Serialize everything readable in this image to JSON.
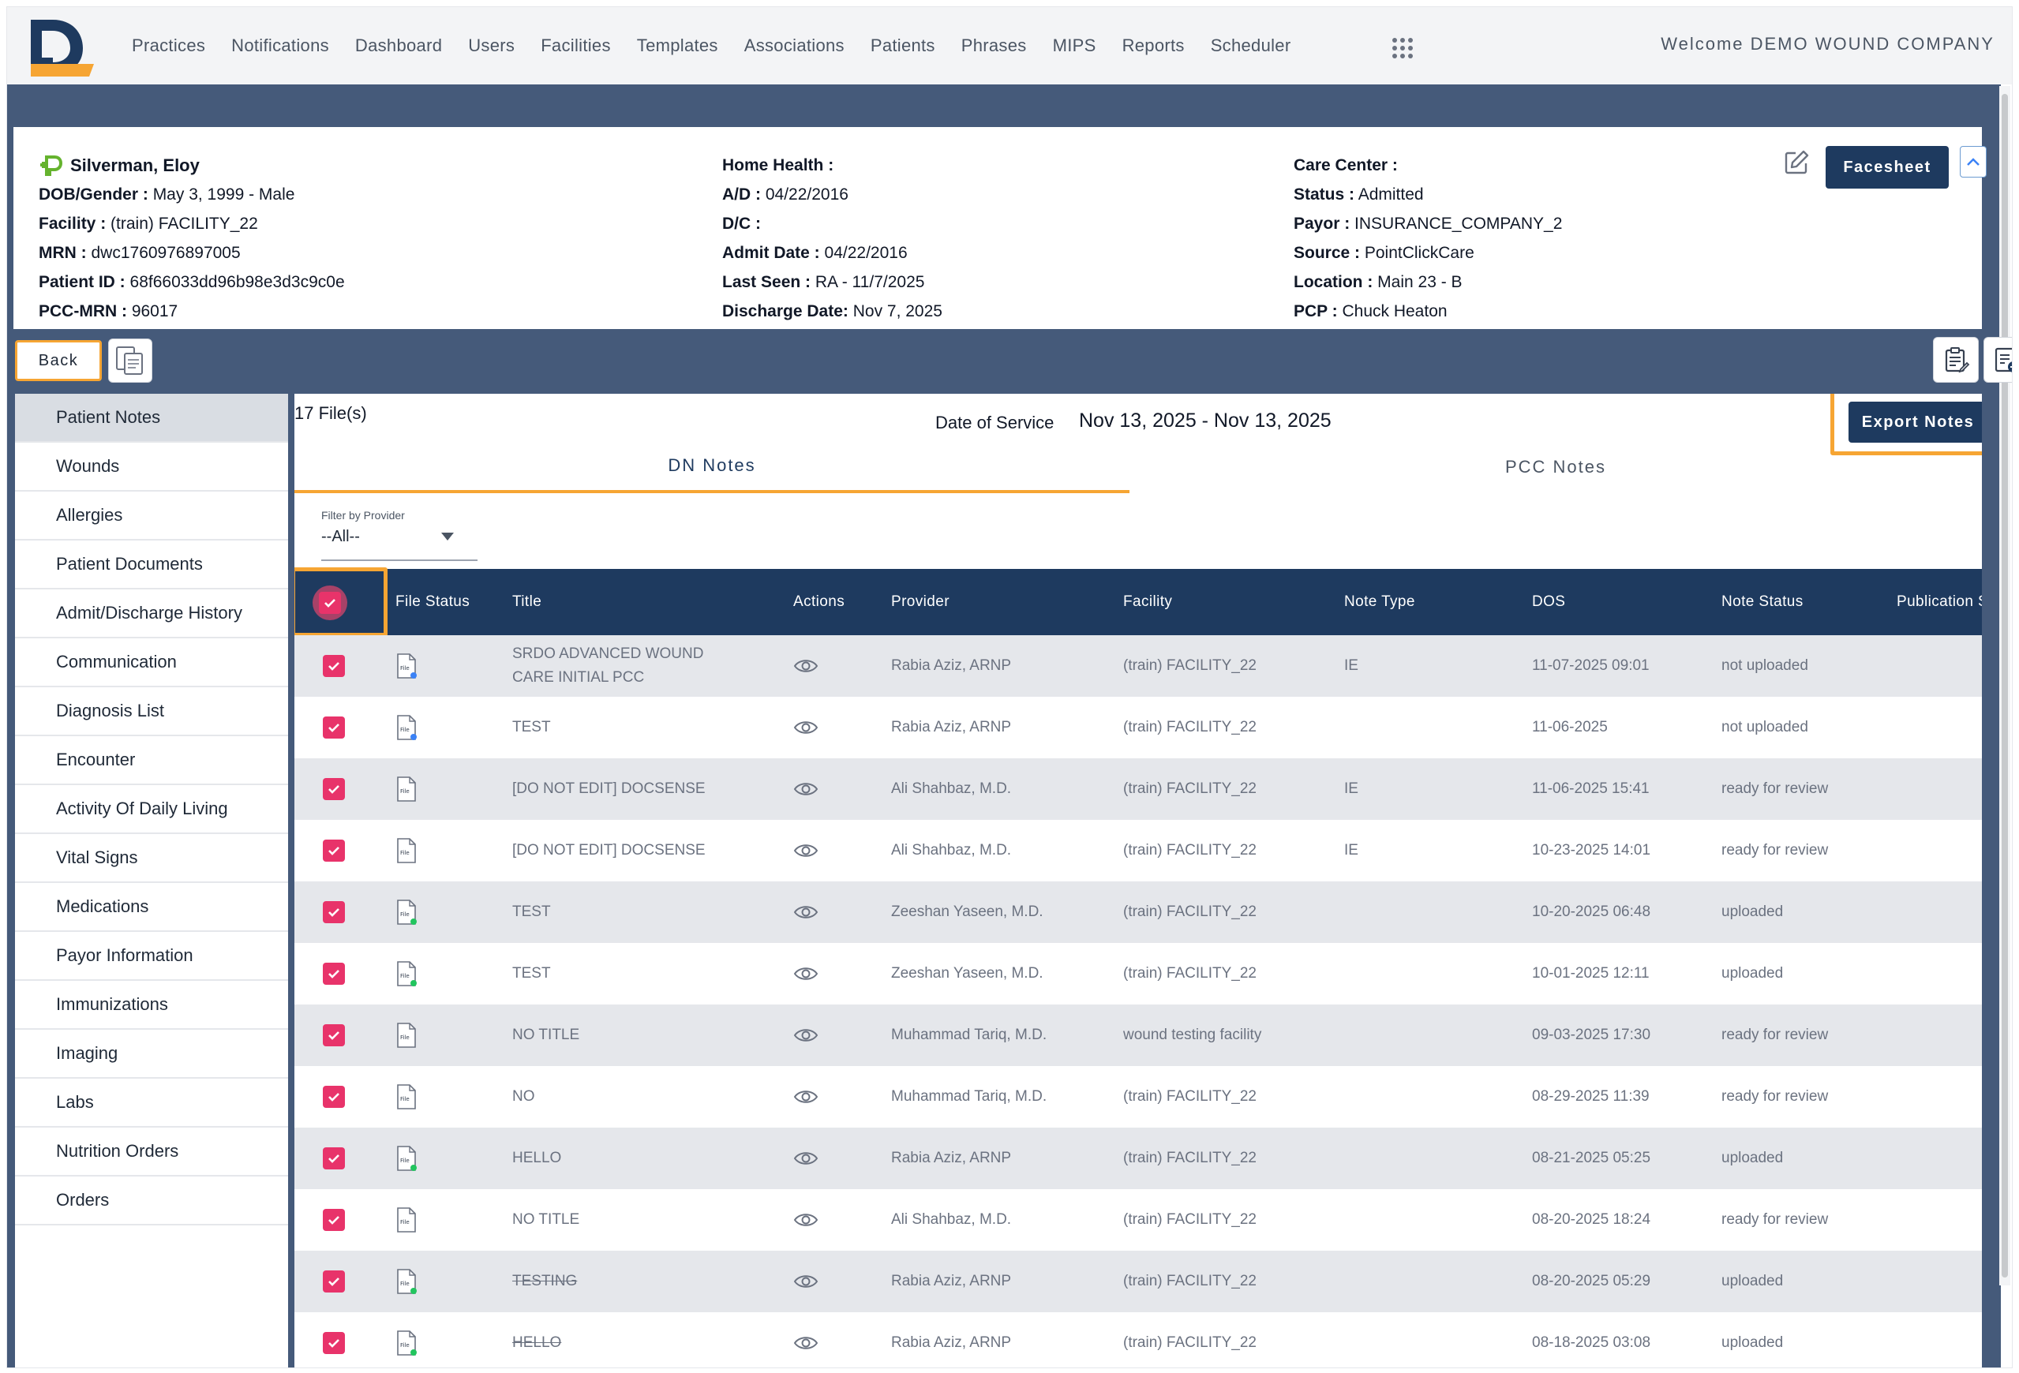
{
  "nav": {
    "items": [
      "Practices",
      "Notifications",
      "Dashboard",
      "Users",
      "Facilities",
      "Templates",
      "Associations",
      "Patients",
      "Phrases",
      "MIPS",
      "Reports",
      "Scheduler"
    ],
    "welcome": "Welcome DEMO WOUND COMPANY"
  },
  "patient": {
    "name": "Silverman, Eloy",
    "left": [
      {
        "label": "DOB/Gender :",
        "value": " May 3, 1999 - Male"
      },
      {
        "label": "Facility :",
        "value": " (train) FACILITY_22"
      },
      {
        "label": "MRN :",
        "value": " dwc1760976897005"
      },
      {
        "label": "Patient ID :",
        "value": " 68f66033dd96b98e3d3c9c0e"
      },
      {
        "label": "PCC-MRN :",
        "value": " 96017"
      }
    ],
    "middle": [
      {
        "label": "Home Health :",
        "value": ""
      },
      {
        "label": "A/D :",
        "value": " 04/22/2016"
      },
      {
        "label": "D/C :",
        "value": ""
      },
      {
        "label": "Admit Date :",
        "value": " 04/22/2016"
      },
      {
        "label": "Last Seen :",
        "value": " RA - 11/7/2025"
      },
      {
        "label": "Discharge Date:",
        "value": " Nov 7, 2025"
      }
    ],
    "right": [
      {
        "label": "Care Center :",
        "value": ""
      },
      {
        "label": "Status :",
        "value": " Admitted"
      },
      {
        "label": "Payor :",
        "value": " INSURANCE_COMPANY_2"
      },
      {
        "label": "Source :",
        "value": " PointClickCare"
      },
      {
        "label": "Location :",
        "value": " Main 23 - B"
      },
      {
        "label": "PCP :",
        "value": " Chuck Heaton"
      }
    ],
    "facesheet_label": "Facesheet"
  },
  "toolbar": {
    "back_label": "Back"
  },
  "sidebar": {
    "items": [
      "Patient Notes",
      "Wounds",
      "Allergies",
      "Patient Documents",
      "Admit/Discharge History",
      "Communication",
      "Diagnosis List",
      "Encounter",
      "Activity Of Daily Living",
      "Vital Signs",
      "Medications",
      "Payor Information",
      "Immunizations",
      "Imaging",
      "Labs",
      "Nutrition Orders",
      "Orders"
    ],
    "active": "Patient Notes"
  },
  "notes": {
    "file_count": "17 File(s)",
    "dos_label": "Date of Service",
    "dos_value": "Nov 13, 2025 - Nov 13, 2025",
    "export_label": "Export Notes",
    "tabs": [
      "DN Notes",
      "PCC Notes"
    ],
    "filter": {
      "label": "Filter by Provider",
      "value": "--All--"
    },
    "columns": [
      "File Status",
      "Title",
      "Actions",
      "Provider",
      "Facility",
      "Note Type",
      "DOS",
      "Note Status",
      "Publication Status"
    ],
    "rows": [
      {
        "title": "SRDO ADVANCED WOUND CARE INITIAL PCC",
        "provider": "Rabia Aziz, ARNP",
        "facility": "(train) FACILITY_22",
        "note_type": "IE",
        "dos": "11-07-2025 09:01",
        "status": "not uploaded",
        "file_dot": "#3b82f6",
        "strike": false
      },
      {
        "title": "TEST",
        "provider": "Rabia Aziz, ARNP",
        "facility": "(train) FACILITY_22",
        "note_type": "",
        "dos": "11-06-2025",
        "status": "not uploaded",
        "file_dot": "#3b82f6",
        "strike": false
      },
      {
        "title": "[DO NOT EDIT] DOCSENSE",
        "provider": "Ali Shahbaz, M.D.",
        "facility": "(train) FACILITY_22",
        "note_type": "IE",
        "dos": "11-06-2025 15:41",
        "status": "ready for review",
        "file_dot": "",
        "strike": false
      },
      {
        "title": "[DO NOT EDIT] DOCSENSE",
        "provider": "Ali Shahbaz, M.D.",
        "facility": "(train) FACILITY_22",
        "note_type": "IE",
        "dos": "10-23-2025 14:01",
        "status": "ready for review",
        "file_dot": "",
        "strike": false
      },
      {
        "title": "TEST",
        "provider": "Zeeshan Yaseen, M.D.",
        "facility": "(train) FACILITY_22",
        "note_type": "",
        "dos": "10-20-2025 06:48",
        "status": "uploaded",
        "file_dot": "#22c55e",
        "strike": false
      },
      {
        "title": "TEST",
        "provider": "Zeeshan Yaseen, M.D.",
        "facility": "(train) FACILITY_22",
        "note_type": "",
        "dos": "10-01-2025 12:11",
        "status": "uploaded",
        "file_dot": "#22c55e",
        "strike": false
      },
      {
        "title": "NO TITLE",
        "provider": "Muhammad Tariq, M.D.",
        "facility": "wound testing facility",
        "note_type": "",
        "dos": "09-03-2025 17:30",
        "status": "ready for review",
        "file_dot": "",
        "strike": false
      },
      {
        "title": "NO",
        "provider": "Muhammad Tariq, M.D.",
        "facility": "(train) FACILITY_22",
        "note_type": "",
        "dos": "08-29-2025 11:39",
        "status": "ready for review",
        "file_dot": "",
        "strike": false
      },
      {
        "title": "HELLO",
        "provider": "Rabia Aziz, ARNP",
        "facility": "(train) FACILITY_22",
        "note_type": "",
        "dos": "08-21-2025 05:25",
        "status": "uploaded",
        "file_dot": "#22c55e",
        "strike": false
      },
      {
        "title": "NO TITLE",
        "provider": "Ali Shahbaz, M.D.",
        "facility": "(train) FACILITY_22",
        "note_type": "",
        "dos": "08-20-2025 18:24",
        "status": "ready for review",
        "file_dot": "",
        "strike": false
      },
      {
        "title": "TESTING",
        "provider": "Rabia Aziz, ARNP",
        "facility": "(train) FACILITY_22",
        "note_type": "",
        "dos": "08-20-2025 05:29",
        "status": "uploaded",
        "file_dot": "#22c55e",
        "strike": true
      },
      {
        "title": "HELLO",
        "provider": "Rabia Aziz, ARNP",
        "facility": "(train) FACILITY_22",
        "note_type": "",
        "dos": "08-18-2025 03:08",
        "status": "uploaded",
        "file_dot": "#22c55e",
        "strike": true
      }
    ],
    "file_icon_label": "File"
  },
  "colors": {
    "brand_navy": "#1e3a5f",
    "accent_orange": "#f6a533",
    "checkbox_pink": "#e8336a",
    "band": "#455a7a"
  },
  "icons": {
    "logo": "dn-logo-icon",
    "apps": "apps-grid-icon",
    "edit": "edit-icon",
    "collapse": "chevron-up-icon",
    "docs": "documents-icon",
    "clipboard": "clipboard-edit-icon",
    "note_add": "note-add-icon",
    "file": "file-icon",
    "eye": "eye-icon",
    "check": "check-icon"
  }
}
